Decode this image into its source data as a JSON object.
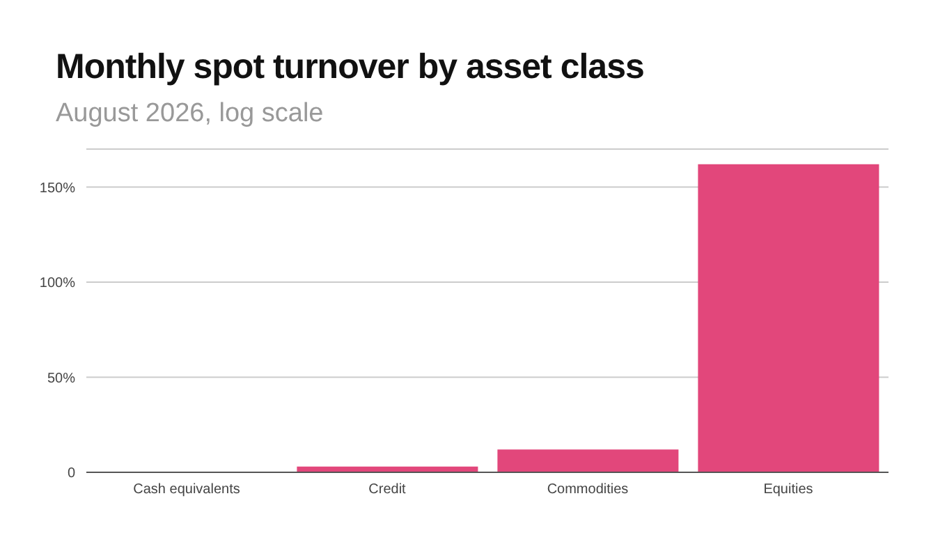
{
  "chart_data": {
    "type": "bar",
    "title": "Monthly spot turnover by asset class",
    "subtitle": "August 2026, log scale",
    "categories": [
      "Cash equivalents",
      "Credit",
      "Commodities",
      "Equities"
    ],
    "values": [
      0,
      3,
      12,
      162
    ],
    "color": "#e2477b",
    "ylim": [
      0,
      170
    ],
    "yticks": [
      {
        "value": 0,
        "label": "0"
      },
      {
        "value": 50,
        "label": "50%"
      },
      {
        "value": 100,
        "label": "100%"
      },
      {
        "value": 150,
        "label": "150%"
      }
    ],
    "grid": "y"
  }
}
